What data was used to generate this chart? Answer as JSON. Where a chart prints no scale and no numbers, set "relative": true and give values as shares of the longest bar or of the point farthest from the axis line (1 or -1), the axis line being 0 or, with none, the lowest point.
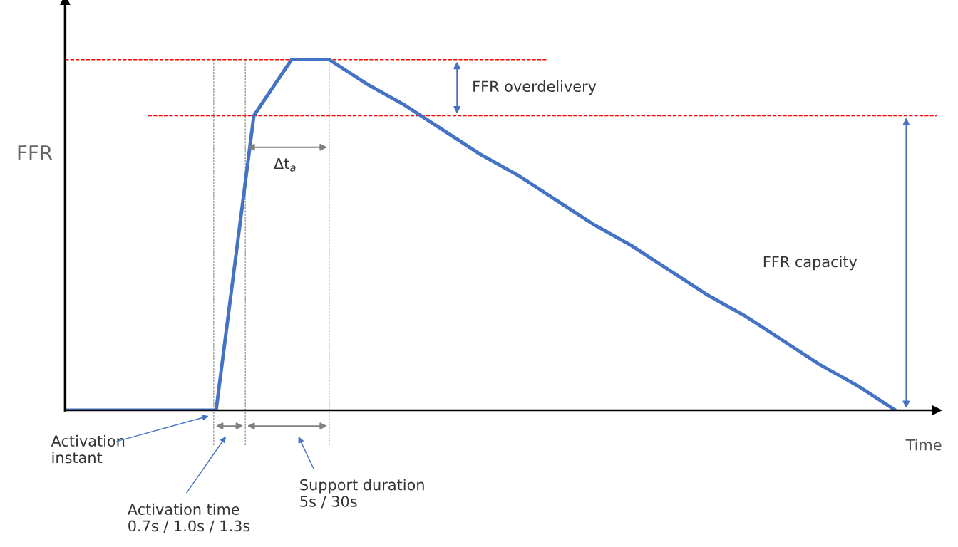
{
  "chart_data": {
    "type": "line",
    "relative": true,
    "ylabel": "FFR",
    "xlabel": "Time",
    "legend": false,
    "marker": "none",
    "line_style": "solid",
    "categories": [
      null,
      null,
      null,
      null,
      null,
      null,
      null,
      null,
      null,
      null,
      null,
      null,
      null,
      null,
      null,
      null,
      null,
      null,
      null,
      null,
      null,
      null,
      null
    ],
    "series": [
      {
        "color": "#4472c4",
        "values": [
          0,
          0,
          0,
          0,
          0,
          0.84,
          1,
          1,
          0.93,
          0.87,
          0.8,
          0.73,
          0.67,
          0.6,
          0.53,
          0.47,
          0.4,
          0.33,
          0.27,
          0.2,
          0.13,
          0.07,
          0
        ]
      }
    ],
    "ref_lines": [
      {
        "axis": "y",
        "value": 1,
        "color": "#ff0000",
        "line_style": "dashed"
      },
      {
        "axis": "y",
        "value": 0.84,
        "color": "#ff0000",
        "line_style": "dashed"
      }
    ],
    "annotations": [
      "FFR overdelivery",
      "FFR capacity",
      "Δt$_{a}$",
      "Activation\ninstant",
      "Activation time\n0.7s / 1.0s / 1.3s",
      "Support duration\n5s / 30s"
    ]
  }
}
